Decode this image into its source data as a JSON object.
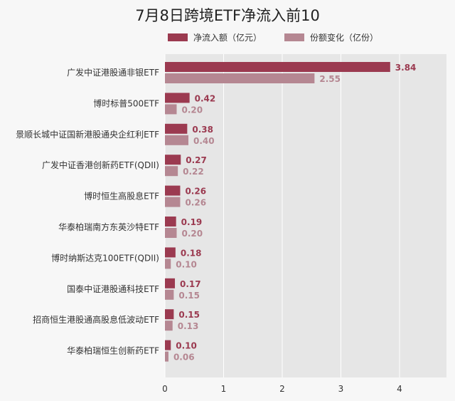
{
  "chart_data": {
    "type": "bar",
    "orientation": "horizontal",
    "title": "7月8日跨境ETF净流入前10",
    "categories": [
      "广发中证港股通非银ETF",
      "博时标普500ETF",
      "景顺长城中证国新港股通央企红利ETF",
      "广发中证香港创新药ETF(QDII)",
      "博时恒生高股息ETF",
      "华泰柏瑞南方东英沙特ETF",
      "博时纳斯达克100ETF(QDII)",
      "国泰中证港股通科技ETF",
      "招商恒生港股通高股息低波动ETF",
      "华泰柏瑞恒生创新药ETF"
    ],
    "series": [
      {
        "name": "净流入额（亿元）",
        "color": "#9b3a50",
        "values": [
          3.84,
          0.42,
          0.38,
          0.27,
          0.26,
          0.19,
          0.18,
          0.17,
          0.15,
          0.1
        ],
        "labels": [
          "3.84",
          "0.42",
          "0.38",
          "0.27",
          "0.26",
          "0.19",
          "0.18",
          "0.17",
          "0.15",
          "0.10"
        ]
      },
      {
        "name": "份额变化（亿份）",
        "color": "#b58792",
        "values": [
          2.55,
          0.2,
          0.4,
          0.22,
          0.26,
          0.2,
          0.1,
          0.15,
          0.13,
          0.06
        ],
        "labels": [
          "2.55",
          "0.20",
          "0.40",
          "0.22",
          "0.26",
          "0.20",
          "0.10",
          "0.15",
          "0.13",
          "0.06"
        ]
      }
    ],
    "xlim": [
      0,
      4.8
    ],
    "xticks": [
      0,
      1,
      2,
      3,
      4
    ],
    "xtick_labels": [
      "0",
      "1",
      "2",
      "3",
      "4"
    ],
    "grid": true,
    "legend_position": "top",
    "plot_background": "#e6e6e6",
    "grid_color": "#ffffff"
  }
}
